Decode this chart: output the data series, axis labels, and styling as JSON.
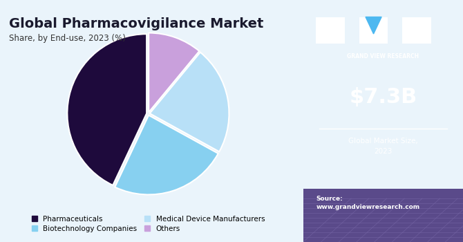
{
  "title": "Global Pharmacovigilance Market",
  "subtitle": "Share, by End-use, 2023 (%)",
  "slices": [
    {
      "label": "Pharmaceuticals",
      "value": 43,
      "color": "#1e0a3c"
    },
    {
      "label": "Biotechnology Companies",
      "value": 24,
      "color": "#87d0f0"
    },
    {
      "label": "Medical Device Manufacturers",
      "value": 22,
      "color": "#b8e0f7"
    },
    {
      "label": "Others",
      "value": 11,
      "color": "#c9a0dc"
    }
  ],
  "start_angle": 90,
  "sidebar_bg": "#3d1a6e",
  "sidebar_text_color": "#ffffff",
  "main_bg": "#eaf4fb",
  "market_size": "$7.3B",
  "market_label": "Global Market Size,\n2023",
  "source_text": "Source:\nwww.grandviewresearch.com",
  "gvr_label": "GRAND VIEW RESEARCH",
  "title_color": "#1a1a2e",
  "subtitle_color": "#333333",
  "sidebar_bottom_color": "#5a4a8a",
  "grid_line_color": "#7a6aaa",
  "triangle_color": "#4db8f0"
}
